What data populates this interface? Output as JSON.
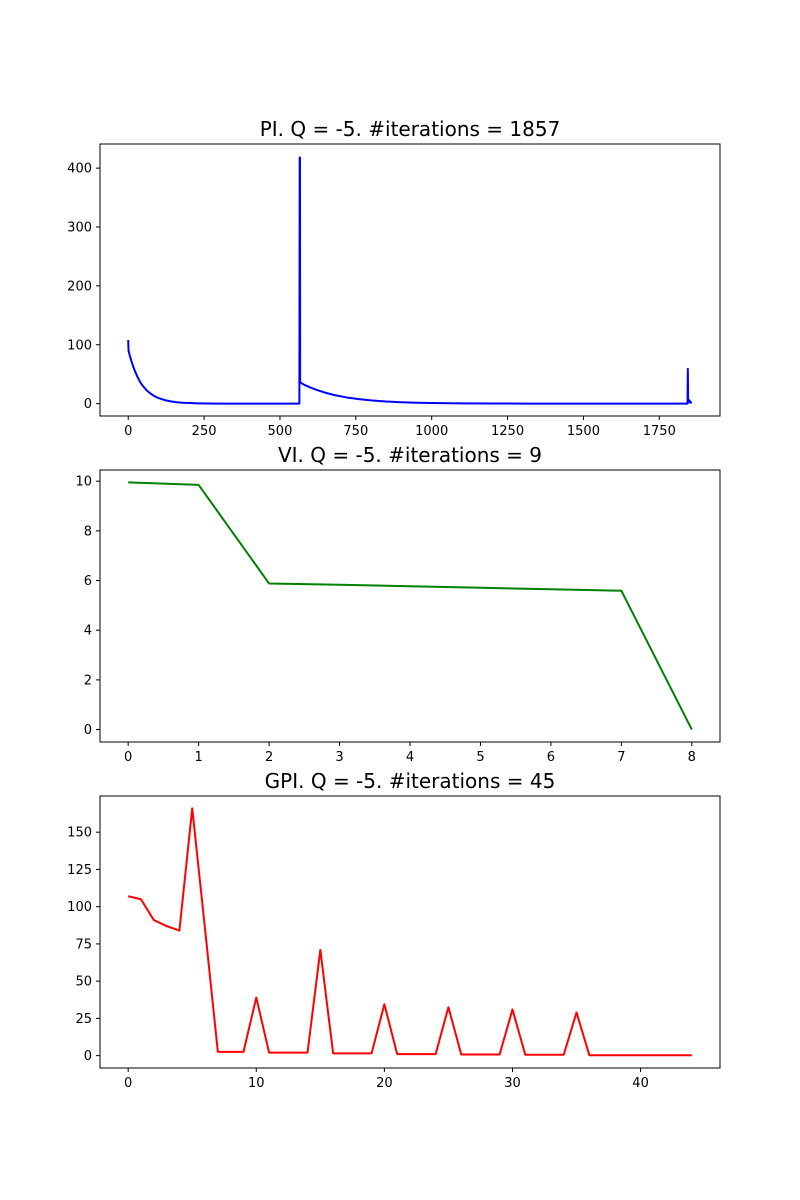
{
  "chart_data": [
    {
      "type": "line",
      "title": "PI. Q = -5. #iterations = 1857",
      "xlabel": "",
      "ylabel": "",
      "xlim": [
        -93,
        1950
      ],
      "ylim": [
        -21,
        441
      ],
      "xticks": [
        0,
        250,
        500,
        750,
        1000,
        1250,
        1500,
        1750
      ],
      "xtick_labels": [
        "0",
        "250",
        "500",
        "750",
        "1000",
        "1250",
        "1500",
        "1750"
      ],
      "yticks": [
        0,
        100,
        200,
        300,
        400
      ],
      "ytick_labels": [
        "0",
        "100",
        "200",
        "300",
        "400"
      ],
      "grid": false,
      "color": "#0000ff",
      "series": [
        {
          "x": [
            0,
            1,
            5,
            10,
            20,
            30,
            40,
            50,
            60,
            70,
            80,
            90,
            100,
            120,
            140,
            160,
            180,
            200,
            230,
            260,
            300,
            400,
            500,
            564,
            565,
            566,
            566.5,
            567,
            580,
            600,
            620,
            650,
            680,
            720,
            760,
            800,
            850,
            900,
            950,
            1000,
            1100,
            1200,
            1300,
            1400,
            1500,
            1600,
            1700,
            1800,
            1843,
            1844,
            1845,
            1846,
            1848,
            1850,
            1852,
            1854,
            1856
          ],
          "y": [
            108,
            90,
            82,
            73,
            58,
            46,
            36,
            29,
            23,
            18.5,
            14.7,
            11.7,
            9.4,
            6,
            3.8,
            2.4,
            1.5,
            1,
            0.5,
            0.3,
            0.1,
            0,
            0,
            0,
            418,
            418,
            36,
            36,
            32,
            27.5,
            23.5,
            18.5,
            14.5,
            10.5,
            7.6,
            5.5,
            3.6,
            2.3,
            1.5,
            1,
            0.4,
            0.2,
            0.1,
            0,
            0,
            0,
            0,
            0,
            0,
            59,
            5,
            3,
            6,
            2,
            4,
            1.5,
            3
          ]
        }
      ]
    },
    {
      "type": "line",
      "title": "VI. Q = -5. #iterations = 9",
      "xlabel": "",
      "ylabel": "",
      "xlim": [
        -0.4,
        8.4
      ],
      "ylim": [
        -0.5,
        10.45
      ],
      "xticks": [
        0,
        1,
        2,
        3,
        4,
        5,
        6,
        7,
        8
      ],
      "xtick_labels": [
        "0",
        "1",
        "2",
        "3",
        "4",
        "5",
        "6",
        "7",
        "8"
      ],
      "yticks": [
        0,
        2,
        4,
        6,
        8,
        10
      ],
      "ytick_labels": [
        "0",
        "2",
        "4",
        "6",
        "8",
        "10"
      ],
      "grid": false,
      "color": "#008000",
      "series": [
        {
          "x": [
            0,
            1,
            2,
            3,
            4,
            5,
            6,
            7,
            8
          ],
          "y": [
            9.95,
            9.85,
            5.88,
            5.83,
            5.77,
            5.71,
            5.65,
            5.59,
            0
          ]
        }
      ]
    },
    {
      "type": "line",
      "title": "GPI. Q = -5. #iterations = 45",
      "xlabel": "",
      "ylabel": "",
      "xlim": [
        -2.2,
        46.2
      ],
      "ylim": [
        -8.3,
        174.3
      ],
      "xticks": [
        0,
        10,
        20,
        30,
        40
      ],
      "xtick_labels": [
        "0",
        "10",
        "20",
        "30",
        "40"
      ],
      "yticks": [
        0,
        25,
        50,
        75,
        100,
        125,
        150
      ],
      "ytick_labels": [
        "0",
        "25",
        "50",
        "75",
        "100",
        "125",
        "150"
      ],
      "grid": false,
      "color": "#ff0000",
      "series": [
        {
          "x": [
            0,
            1,
            2,
            3,
            4,
            5,
            6,
            7,
            8,
            9,
            10,
            11,
            12,
            13,
            14,
            15,
            16,
            17,
            18,
            19,
            20,
            21,
            22,
            23,
            24,
            25,
            26,
            27,
            28,
            29,
            30,
            31,
            32,
            33,
            34,
            35,
            36,
            37,
            38,
            39,
            40,
            41,
            42,
            43,
            44
          ],
          "y": [
            107,
            105,
            91,
            87,
            84,
            166,
            85,
            2.5,
            2.5,
            2.5,
            39,
            2,
            2,
            2,
            2,
            71,
            1.5,
            1.5,
            1.5,
            1.5,
            34.5,
            1,
            1,
            1,
            1,
            32.5,
            0.8,
            0.8,
            0.8,
            0.8,
            31,
            0.6,
            0.6,
            0.6,
            0.6,
            29,
            0.3,
            0.3,
            0.3,
            0.3,
            0.3,
            0.3,
            0.3,
            0.3,
            0.3
          ]
        }
      ]
    }
  ]
}
